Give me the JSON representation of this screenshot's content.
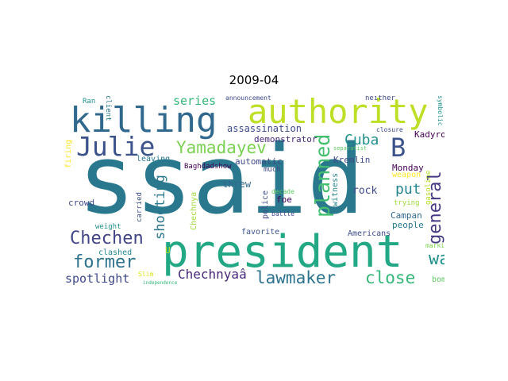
{
  "title": "2009-04",
  "words": {
    "ssaid": "ssaid",
    "president": "president",
    "authority": "authority",
    "killing": "killing",
    "julie": "Julie",
    "yamadayev": "Yamadayev",
    "b": "B",
    "planned": "planned",
    "general": "general",
    "chechen": "Chechen",
    "former": "former",
    "lawmaker": "lawmaker",
    "close": "close",
    "wa": "wa",
    "chechnyaa": "Chechnyaâ",
    "spotlight": "spotlight",
    "shooting": "shooting",
    "series": "series",
    "cuba": "Cuba",
    "put": "put",
    "assassination": "assassination",
    "demonstrator": "demonstrator",
    "kremlin": "Kremlin",
    "kadyrov": "Kadyrov",
    "monday": "Monday",
    "automatic": "automatic",
    "threw": "threw",
    "rock": "rock",
    "campan": "Campan",
    "people": "people",
    "americans": "Americans",
    "foe": "foe",
    "police": "police",
    "witness": "witness",
    "weapon": "weapon",
    "gasoline": "gasoline",
    "trying": "trying",
    "marking": "marking",
    "bomb": "bomb",
    "crowd": "crowd",
    "clashed": "clashed",
    "weight": "weight",
    "carried": "carried",
    "chechnya": "Chechnya",
    "firing": "firing",
    "leaving": "leaving",
    "baghdadshow": "Baghdadshow",
    "much": "much",
    "decade": "decade",
    "battle": "battle",
    "favorite": "favorite",
    "slim": "Slim",
    "independence": "independence",
    "u": "U",
    "ran": "Ran",
    "client": "client",
    "announcement": "announcement",
    "neither": "neither",
    "closure": "closure",
    "symbolic": "symbolic",
    "separatist": "separatist"
  }
}
